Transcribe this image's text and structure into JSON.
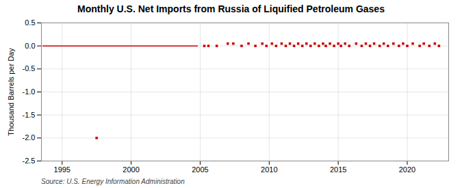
{
  "chart_data": {
    "type": "line",
    "title": "Monthly U.S. Net Imports from Russia of Liquified Petroleum Gases",
    "ylabel": "Thousand Barrels per Day",
    "source": "Source: U.S. Energy Information Administration",
    "xlim": [
      1993.5,
      2023.0
    ],
    "ylim": [
      -2.5,
      0.5
    ],
    "xticks": [
      1995,
      2000,
      2005,
      2010,
      2015,
      2020
    ],
    "yticks": [
      0.5,
      {
        "value": 0.0,
        "label": "0.0"
      },
      -0.5,
      {
        "value": -1.0,
        "label": "-1.0"
      },
      -1.5,
      {
        "value": -2.0,
        "label": "-2.0"
      },
      -2.5
    ],
    "grid": true,
    "series": [
      {
        "type": "line",
        "color": "#cc0000",
        "x": [
          1993.6,
          2004.8
        ],
        "values": [
          0.0,
          0.0
        ]
      },
      {
        "type": "scatter",
        "marker": "square",
        "color": "#cc0000",
        "x": [
          2005.3,
          2005.6,
          2006.2,
          2007.0,
          2007.4,
          2008.0,
          2008.5,
          2009.0,
          2009.5,
          2009.8,
          2010.2,
          2010.5,
          2010.9,
          2011.2,
          2011.5,
          2011.8,
          2012.1,
          2012.4,
          2012.7,
          2013.0,
          2013.3,
          2013.6,
          2013.9,
          2014.1,
          2014.4,
          2014.7,
          2015.0,
          2015.2,
          2015.5,
          2015.8,
          2016.3,
          2016.7,
          2017.0,
          2017.3,
          2017.6,
          2018.0,
          2018.3,
          2018.6,
          2019.0,
          2019.4,
          2019.7,
          2020.0,
          2020.4,
          2020.9,
          2021.2,
          2021.6,
          2022.0,
          2022.3
        ],
        "values": [
          0.0,
          0.0,
          0.0,
          0.05,
          0.05,
          0.0,
          0.05,
          0.0,
          0.05,
          0.0,
          0.05,
          0.0,
          0.05,
          0.0,
          0.05,
          0.0,
          0.05,
          0.0,
          0.05,
          0.0,
          0.05,
          0.0,
          0.05,
          0.0,
          0.05,
          0.0,
          0.05,
          0.0,
          0.05,
          0.0,
          0.05,
          0.0,
          0.05,
          0.0,
          0.05,
          0.0,
          0.05,
          0.0,
          0.05,
          0.0,
          0.05,
          0.0,
          0.05,
          0.0,
          0.05,
          0.0,
          0.05,
          0.0
        ]
      },
      {
        "type": "scatter",
        "marker": "square",
        "color": "#cc0000",
        "x": [
          1997.5
        ],
        "values": [
          -2.0
        ]
      }
    ]
  }
}
